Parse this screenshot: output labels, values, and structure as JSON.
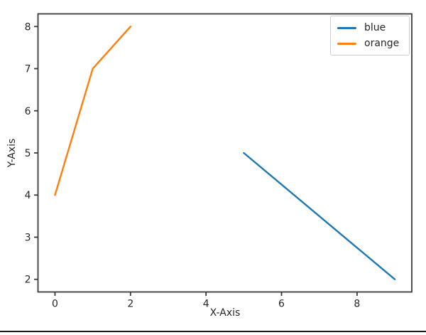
{
  "chart_data": {
    "type": "line",
    "title": "",
    "xlabel": "X-Axis",
    "ylabel": "Y-Axis",
    "xlim": [
      -0.45,
      9.45
    ],
    "ylim": [
      1.7,
      8.3
    ],
    "x_ticks": [
      0,
      2,
      4,
      6,
      8
    ],
    "y_ticks": [
      2,
      3,
      4,
      5,
      6,
      7,
      8
    ],
    "grid": false,
    "legend_position": "upper-right",
    "series": [
      {
        "name": "blue",
        "color": "#1f77b4",
        "x": [
          5,
          9
        ],
        "y": [
          5,
          2
        ]
      },
      {
        "name": "orange",
        "color": "#ff7f0e",
        "x": [
          0,
          1,
          2
        ],
        "y": [
          4,
          7,
          8
        ]
      }
    ],
    "axis_color": "#3a3a3a",
    "text_color": "#262626"
  },
  "footer": {
    "divider_color": "#1c1c1c"
  }
}
